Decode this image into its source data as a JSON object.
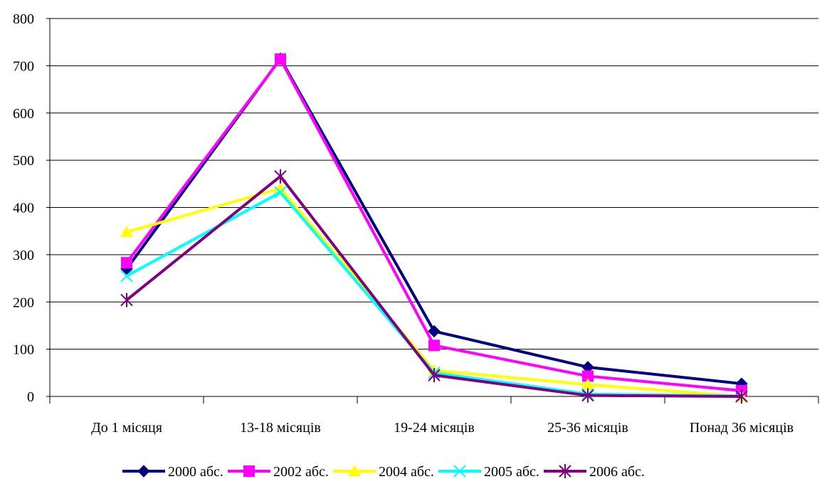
{
  "chart_data": {
    "type": "line",
    "categories": [
      "До 1 місяця",
      "13-18 місяців",
      "19-24 місяців",
      "25-36 місяців",
      "Понад 36 місяців"
    ],
    "ylim": [
      0,
      800
    ],
    "yticks": [
      0,
      100,
      200,
      300,
      400,
      500,
      600,
      700,
      800
    ],
    "ytick_labels": [
      "0",
      "100",
      "200",
      "300",
      "400",
      "500",
      "600",
      "700",
      "800"
    ],
    "grid": true,
    "legend_position": "bottom",
    "series": [
      {
        "name": "2000 абс.",
        "color": "#000080",
        "marker": "diamond",
        "values": [
          270,
          715,
          138,
          62,
          27
        ]
      },
      {
        "name": "2002 абс.",
        "color": "#FF00FF",
        "marker": "square",
        "values": [
          283,
          714,
          108,
          43,
          12
        ]
      },
      {
        "name": "2004 абс.",
        "color": "#FFFF00",
        "marker": "triangle",
        "values": [
          348,
          440,
          55,
          25,
          0
        ]
      },
      {
        "name": "2005 абс.",
        "color": "#00FFFF",
        "marker": "x",
        "values": [
          255,
          432,
          50,
          5,
          1
        ]
      },
      {
        "name": "2006 абс.",
        "color": "#800080",
        "marker": "star",
        "values": [
          204,
          466,
          45,
          2,
          0
        ]
      }
    ]
  }
}
